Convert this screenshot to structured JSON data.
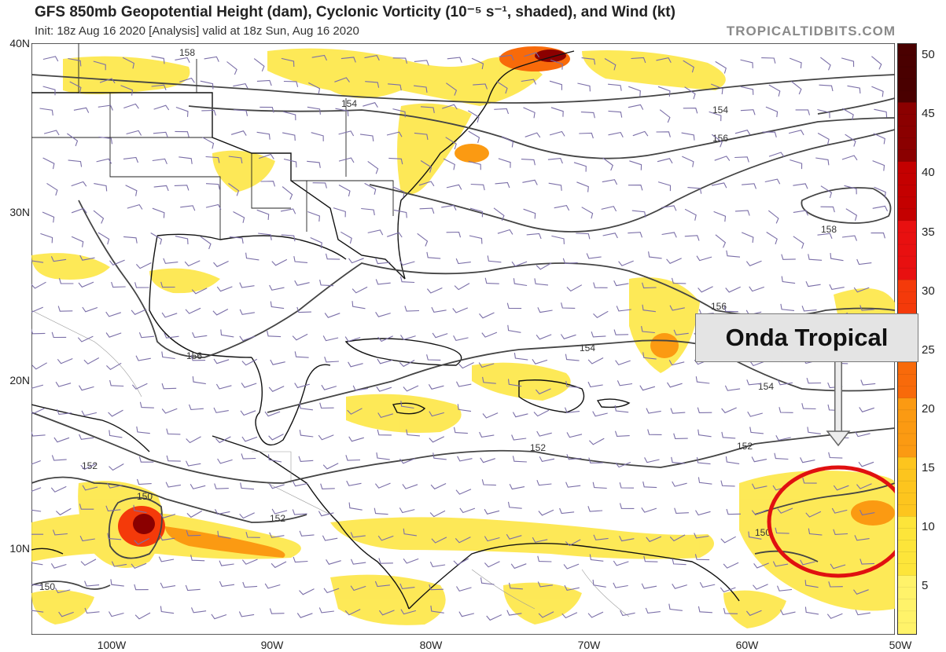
{
  "header": {
    "title": "GFS 850mb Geopotential Height (dam), Cyclonic Vorticity (10⁻⁵ s⁻¹, shaded), and Wind (kt)",
    "subtitle": "Init: 18z Aug 16 2020   [Analysis]   valid at 18z Sun, Aug 16 2020",
    "brand": "TROPICALTIDBITS.COM"
  },
  "axes": {
    "lat_labels": [
      "40N",
      "30N",
      "20N",
      "10N"
    ],
    "lon_labels": [
      "100W",
      "90W",
      "80W",
      "70W",
      "60W",
      "50W"
    ]
  },
  "contour_labels": [
    "158",
    "154",
    "154",
    "156",
    "158",
    "156",
    "154",
    "156",
    "154",
    "152",
    "152",
    "152",
    "152",
    "150",
    "150",
    "150"
  ],
  "colorbar": {
    "labels": [
      "50",
      "45",
      "40",
      "35",
      "30",
      "25",
      "20",
      "15",
      "10",
      "5"
    ],
    "colors": [
      "#4a0000",
      "#8b0000",
      "#c40000",
      "#e81010",
      "#f43a0a",
      "#f86a0a",
      "#fb9a12",
      "#fdc51e",
      "#fde53a",
      "#fff36a"
    ]
  },
  "annotation": {
    "label": "Onda Tropical",
    "circle_color": "#e01010"
  }
}
